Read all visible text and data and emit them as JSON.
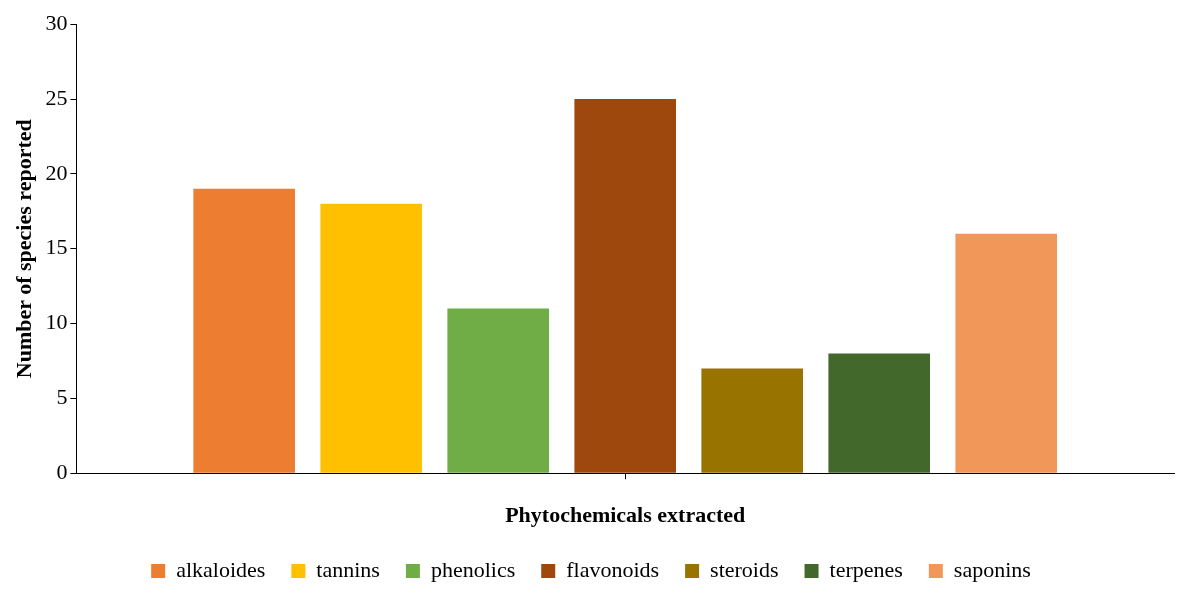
{
  "chart_data": {
    "type": "bar",
    "xlabel": "Phytochemicals extracted",
    "ylabel": "Number of species reported",
    "categories": [
      null
    ],
    "series": [
      {
        "name": "alkaloides",
        "color": "#ed7d31",
        "values": [
          19
        ]
      },
      {
        "name": "tannins",
        "color": "#ffc000",
        "values": [
          18
        ]
      },
      {
        "name": "phenolics",
        "color": "#70ad47",
        "values": [
          11
        ]
      },
      {
        "name": "flavonoids",
        "color": "#9e480e",
        "values": [
          25
        ]
      },
      {
        "name": "steroids",
        "color": "#997300",
        "values": [
          7
        ]
      },
      {
        "name": "terpenes",
        "color": "#43682b",
        "values": [
          8
        ]
      },
      {
        "name": "saponins",
        "color": "#f1975a",
        "values": [
          16
        ]
      }
    ],
    "ylim": [
      0,
      30
    ],
    "yticks": [
      0,
      5,
      10,
      15,
      20,
      25,
      30
    ],
    "grid": false,
    "legend": "bottom"
  }
}
